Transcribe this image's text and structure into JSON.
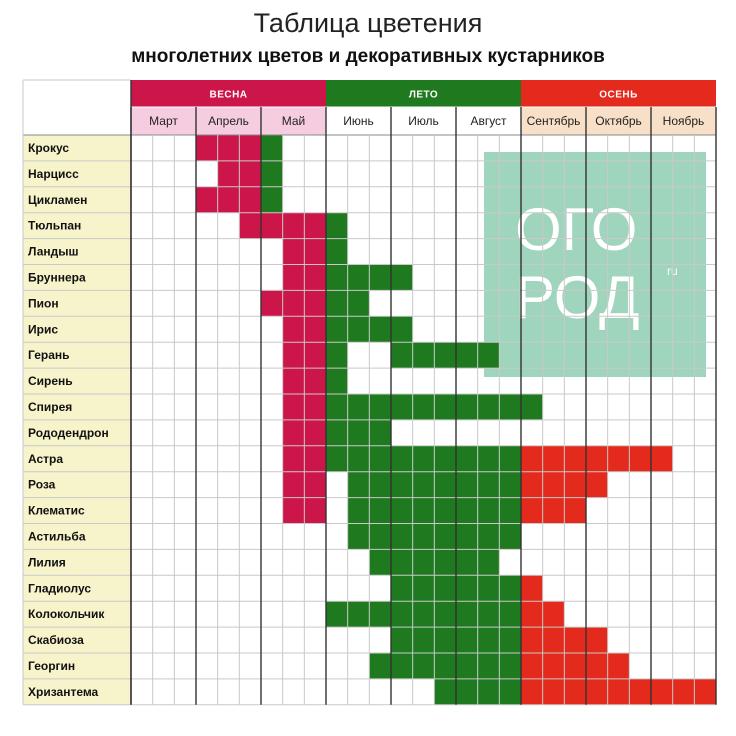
{
  "header": {
    "title": "Таблица цветения",
    "subtitle": "многолетних цветов и декоративных кустарников"
  },
  "watermark": {
    "line1": "ОГО",
    "line2": "РОД",
    "suffix": "ru"
  },
  "colors": {
    "spring": "#cc1549",
    "summer": "#1f7a1f",
    "autumn": "#e32a1c",
    "spring_header": "#cc1549",
    "summer_header": "#1f7a1f",
    "autumn_header": "#e32a1c",
    "spring_month_bg": "#f6cde0",
    "summer_month_bg": "#ffffff",
    "autumn_month_bg": "#f8dfc8",
    "plant_bg": "#f7f4cc",
    "grid": "#c9c9c9",
    "month_line": "#333333",
    "watermark": "#9fd4bd"
  },
  "chart_data": {
    "type": "heatmap",
    "seasons": [
      {
        "name": "ВЕСНА",
        "months": [
          "Март",
          "Апрель",
          "Май"
        ]
      },
      {
        "name": "ЛЕТО",
        "months": [
          "Июнь",
          "Июль",
          "Август"
        ]
      },
      {
        "name": "ОСЕНЬ",
        "months": [
          "Сентябрь",
          "Октябрь",
          "Ноябрь"
        ]
      }
    ],
    "periods_per_month": 3,
    "plants": [
      {
        "name": "Крокус",
        "bloom": [
          [
            3,
            6,
            "spring"
          ],
          [
            6,
            6,
            "summer"
          ]
        ]
      },
      {
        "name": "Нарцисс",
        "bloom": [
          [
            4,
            6,
            "spring"
          ],
          [
            6,
            6,
            "summer"
          ]
        ]
      },
      {
        "name": "Цикламен",
        "bloom": [
          [
            3,
            5,
            "spring"
          ],
          [
            6,
            6,
            "summer"
          ]
        ]
      },
      {
        "name": "Тюльпан",
        "bloom": [
          [
            5,
            8,
            "spring"
          ],
          [
            9,
            9,
            "summer"
          ]
        ]
      },
      {
        "name": "Ландыш",
        "bloom": [
          [
            7,
            8,
            "spring"
          ],
          [
            9,
            9,
            "summer"
          ]
        ]
      },
      {
        "name": "Бруннера",
        "bloom": [
          [
            7,
            8,
            "spring"
          ],
          [
            9,
            12,
            "summer"
          ]
        ]
      },
      {
        "name": "Пион",
        "bloom": [
          [
            6,
            8,
            "spring"
          ],
          [
            9,
            10,
            "summer"
          ]
        ]
      },
      {
        "name": "Ирис",
        "bloom": [
          [
            7,
            8,
            "spring"
          ],
          [
            9,
            12,
            "summer"
          ]
        ]
      },
      {
        "name": "Герань",
        "bloom": [
          [
            7,
            8,
            "spring"
          ],
          [
            9,
            9,
            "summer"
          ],
          [
            12,
            16,
            "summer"
          ]
        ]
      },
      {
        "name": "Сирень",
        "bloom": [
          [
            7,
            8,
            "spring"
          ],
          [
            9,
            9,
            "summer"
          ]
        ]
      },
      {
        "name": "Спирея",
        "bloom": [
          [
            7,
            8,
            "spring"
          ],
          [
            9,
            18,
            "summer"
          ]
        ]
      },
      {
        "name": "Рододендрон",
        "bloom": [
          [
            7,
            8,
            "spring"
          ],
          [
            9,
            11,
            "summer"
          ]
        ]
      },
      {
        "name": "Астра",
        "bloom": [
          [
            7,
            8,
            "spring"
          ],
          [
            9,
            17,
            "summer"
          ],
          [
            18,
            24,
            "autumn"
          ]
        ]
      },
      {
        "name": "Роза",
        "bloom": [
          [
            7,
            8,
            "spring"
          ],
          [
            10,
            17,
            "summer"
          ],
          [
            18,
            21,
            "autumn"
          ]
        ]
      },
      {
        "name": "Клематис",
        "bloom": [
          [
            7,
            8,
            "spring"
          ],
          [
            10,
            17,
            "summer"
          ],
          [
            18,
            20,
            "autumn"
          ]
        ]
      },
      {
        "name": "Астильба",
        "bloom": [
          [
            10,
            17,
            "summer"
          ]
        ]
      },
      {
        "name": "Лилия",
        "bloom": [
          [
            11,
            16,
            "summer"
          ]
        ]
      },
      {
        "name": "Гладиолус",
        "bloom": [
          [
            12,
            17,
            "summer"
          ],
          [
            18,
            18,
            "autumn"
          ]
        ]
      },
      {
        "name": "Колокольчик",
        "bloom": [
          [
            9,
            17,
            "summer"
          ],
          [
            18,
            19,
            "autumn"
          ]
        ]
      },
      {
        "name": "Скабиоза",
        "bloom": [
          [
            12,
            17,
            "summer"
          ],
          [
            18,
            21,
            "autumn"
          ]
        ]
      },
      {
        "name": "Георгин",
        "bloom": [
          [
            11,
            17,
            "summer"
          ],
          [
            18,
            22,
            "autumn"
          ]
        ]
      },
      {
        "name": "Хризантема",
        "bloom": [
          [
            14,
            17,
            "summer"
          ],
          [
            18,
            26,
            "autumn"
          ]
        ]
      }
    ]
  }
}
